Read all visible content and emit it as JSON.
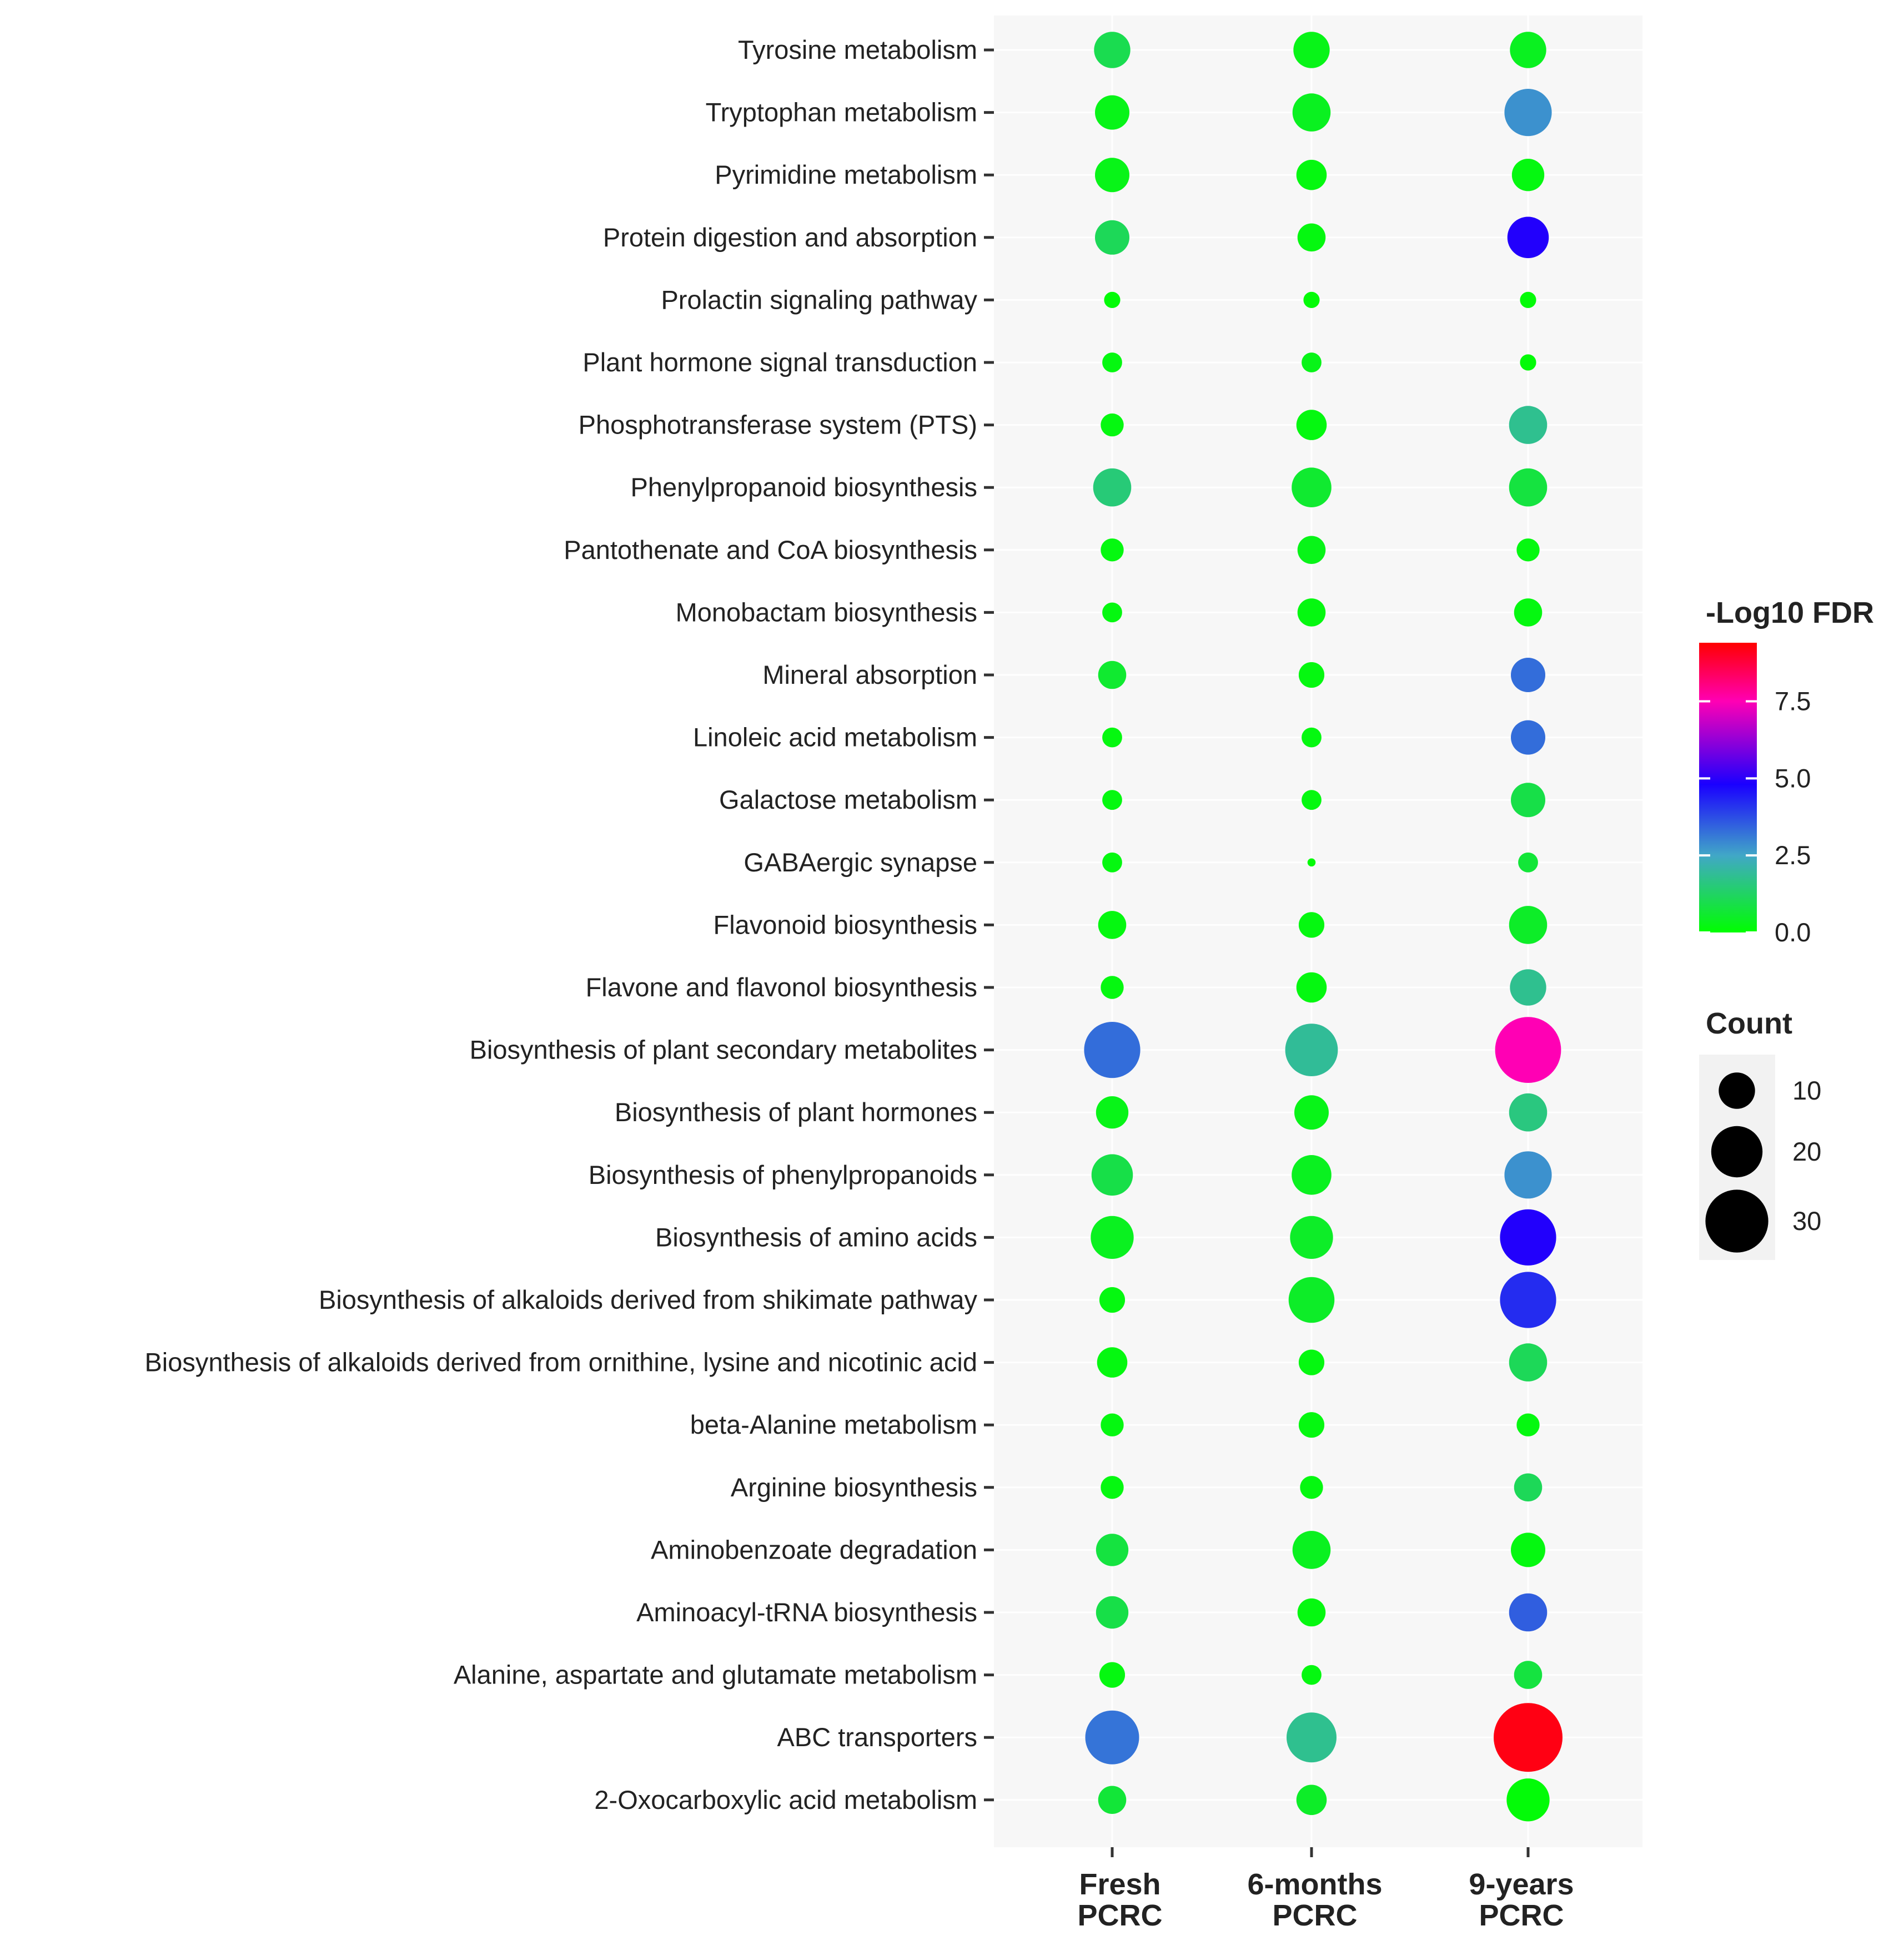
{
  "chart_data": {
    "type": "scatter",
    "title": "",
    "xlabel": "",
    "ylabel": "",
    "x_categories": [
      [
        "Fresh",
        "PCRC"
      ],
      [
        "6-months",
        "PCRC"
      ],
      [
        "9-years",
        "PCRC"
      ]
    ],
    "pathways": [
      "Tyrosine metabolism",
      "Tryptophan metabolism",
      "Pyrimidine metabolism",
      "Protein digestion and absorption",
      "Prolactin signaling pathway",
      "Plant hormone signal transduction",
      "Phosphotransferase system (PTS)",
      "Phenylpropanoid biosynthesis",
      "Pantothenate and CoA biosynthesis",
      "Monobactam biosynthesis",
      "Mineral absorption",
      "Linoleic acid metabolism",
      "Galactose metabolism",
      "GABAergic synapse",
      "Flavonoid biosynthesis",
      "Flavone and flavonol biosynthesis",
      "Biosynthesis of plant secondary metabolites",
      "Biosynthesis of plant hormones",
      "Biosynthesis of phenylpropanoids",
      "Biosynthesis of amino acids",
      "Biosynthesis of alkaloids derived from shikimate pathway",
      "Biosynthesis of alkaloids derived from ornithine, lysine and nicotinic acid",
      "beta-Alanine metabolism",
      "Arginine biosynthesis",
      "Aminobenzoate degradation",
      "Aminoacyl-tRNA biosynthesis",
      "Alanine, aspartate and glutamate metabolism",
      "ABC transporters",
      "2-Oxocarboxylic acid metabolism"
    ],
    "series": [
      {
        "name": "Fresh PCRC",
        "count": [
          10,
          9,
          9,
          9,
          2,
          3,
          4,
          11,
          4,
          3,
          6,
          3,
          3,
          3,
          6,
          4,
          24,
          8,
          13,
          14,
          5,
          7,
          4,
          4,
          8,
          8,
          5,
          22,
          6
        ],
        "neg_log10_fdr": [
          1.0,
          0.3,
          0.3,
          1.1,
          0.1,
          0.2,
          0.2,
          1.5,
          0.2,
          0.2,
          0.6,
          0.2,
          0.2,
          0.2,
          0.2,
          0.2,
          3.3,
          0.3,
          0.9,
          0.4,
          0.2,
          0.2,
          0.2,
          0.2,
          0.8,
          0.9,
          0.2,
          3.2,
          0.7
        ]
      },
      {
        "name": "6-months PCRC",
        "count": [
          10,
          11,
          7,
          6,
          2,
          3,
          7,
          12,
          6,
          6,
          5,
          3,
          3,
          0.5,
          5,
          7,
          21,
          9,
          12,
          14,
          16,
          5,
          5,
          4,
          11,
          6,
          3,
          19,
          7
        ],
        "neg_log10_fdr": [
          0.3,
          0.4,
          0.2,
          0.2,
          0.1,
          0.3,
          0.2,
          0.6,
          0.3,
          0.2,
          0.2,
          0.2,
          0.2,
          0.1,
          0.2,
          0.2,
          1.9,
          0.3,
          0.4,
          0.5,
          0.5,
          0.2,
          0.2,
          0.2,
          0.4,
          0.2,
          0.2,
          1.8,
          0.5
        ]
      },
      {
        "name": "9-years PCRC",
        "count": [
          10,
          17,
          8,
          13,
          2,
          2,
          11,
          11,
          4,
          6,
          9,
          9,
          9,
          3,
          11,
          10,
          33,
          11,
          17,
          24,
          24,
          11,
          4,
          6,
          9,
          11,
          6,
          36,
          14
        ],
        "neg_log10_fdr": [
          0.4,
          2.8,
          0.2,
          4.9,
          0.1,
          0.1,
          1.8,
          0.8,
          0.2,
          0.2,
          3.3,
          3.3,
          0.9,
          0.7,
          0.5,
          1.8,
          7.5,
          1.6,
          2.8,
          4.9,
          4.2,
          1.1,
          0.2,
          1.1,
          0.2,
          3.5,
          0.8,
          9.2,
          0.1
        ]
      }
    ],
    "color_scale": {
      "title": "-Log10 FDR",
      "ticks": [
        "7.5",
        "5.0",
        "2.5",
        "0.0"
      ],
      "tick_values": [
        7.5,
        5.0,
        2.5,
        0.0
      ],
      "range": [
        0,
        9.4
      ],
      "stops": [
        {
          "value": 0.0,
          "color": "#00ff00"
        },
        {
          "value": 2.5,
          "color": "#41a7c7"
        },
        {
          "value": 4.8,
          "color": "#1a00ff"
        },
        {
          "value": 7.5,
          "color": "#ff00b4"
        },
        {
          "value": 9.4,
          "color": "#ff0000"
        }
      ]
    },
    "size_legend": {
      "title": "Count",
      "values": [
        10,
        20,
        30
      ],
      "labels": [
        "10",
        "20",
        "30"
      ]
    },
    "colors": {
      "panel_background": "#f7f7f7",
      "grid": "#ffffff",
      "axis_text": "#222222",
      "legend_key": "#000000"
    }
  }
}
